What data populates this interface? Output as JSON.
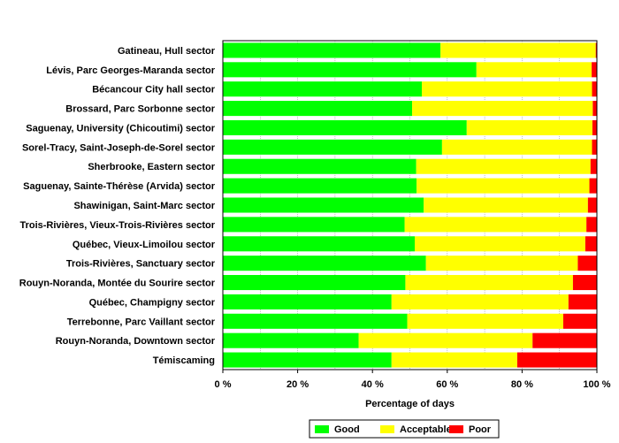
{
  "chart_data": {
    "type": "bar",
    "orientation": "horizontal",
    "stacked": true,
    "title": "",
    "xlabel": "Percentage of days",
    "ylabel": "",
    "xlim": [
      0,
      100
    ],
    "x_ticks": [
      0,
      20,
      40,
      60,
      80,
      100
    ],
    "x_tick_labels": [
      "0 %",
      "20 %",
      "40 %",
      "60 %",
      "80 %",
      "100 %"
    ],
    "grid": true,
    "legend_position": "bottom",
    "categories": [
      "Gatineau, Hull sector",
      "Lévis, Parc Georges-Maranda sector",
      "Bécancour City hall sector",
      "Brossard, Parc Sorbonne sector",
      "Saguenay, University (Chicoutimi) sector",
      "Sorel-Tracy, Saint-Joseph-de-Sorel sector",
      "Sherbrooke, Eastern sector",
      "Saguenay, Sainte-Thérèse (Arvida) sector",
      "Shawinigan, Saint-Marc sector",
      "Trois-Rivières, Vieux-Trois-Rivières sector",
      "Québec, Vieux-Limoilou sector",
      "Trois-Rivières, Sanctuary sector",
      "Rouyn-Noranda, Montée du Sourire sector",
      "Québec, Champigny sector",
      "Terrebonne, Parc Vaillant sector",
      "Rouyn-Noranda,  Downtown sector",
      "Témiscaming"
    ],
    "series": [
      {
        "name": "Good",
        "color": "#00ff00",
        "values": [
          58.2,
          67.8,
          53.2,
          50.6,
          65.2,
          58.6,
          51.7,
          51.8,
          53.7,
          48.6,
          51.3,
          54.3,
          48.8,
          45.1,
          49.3,
          36.3,
          45.1
        ]
      },
      {
        "name": "Acceptable",
        "color": "#ffff00",
        "values": [
          41.5,
          30.8,
          45.5,
          48.3,
          33.6,
          40.1,
          46.6,
          46.2,
          43.9,
          48.6,
          45.6,
          40.6,
          44.8,
          47.3,
          41.7,
          46.5,
          33.6
        ]
      },
      {
        "name": "Poor",
        "color": "#ff0000",
        "values": [
          0.3,
          1.4,
          1.3,
          1.1,
          1.2,
          1.3,
          1.7,
          2.0,
          2.4,
          2.8,
          3.1,
          5.1,
          6.4,
          7.6,
          9.0,
          17.2,
          21.3
        ]
      }
    ]
  }
}
